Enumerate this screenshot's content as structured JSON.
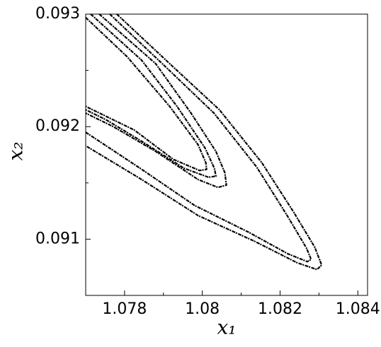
{
  "chart_data": {
    "type": "line",
    "xlabel": "x₁",
    "ylabel": "x₂",
    "xlim": [
      1.077,
      1.08425
    ],
    "ylim": [
      0.0905,
      0.093
    ],
    "xticks": [
      1.078,
      1.08,
      1.082,
      1.084
    ],
    "yticks": [
      0.091,
      0.092,
      0.093
    ],
    "xminor": [
      1.079,
      1.081,
      1.083
    ],
    "yminor": [
      0.0915,
      0.0925
    ],
    "series": [
      {
        "color": "#000000",
        "x": [
          1.0778,
          1.07916,
          1.08044,
          1.08153,
          1.08235,
          1.08289,
          1.08307,
          1.08295,
          1.08244,
          1.08135,
          1.07989,
          1.07844,
          1.077
        ],
        "values": [
          0.093,
          0.09256,
          0.09215,
          0.09168,
          0.09124,
          0.09093,
          0.09077,
          0.09073,
          0.09079,
          0.09098,
          0.09121,
          0.09153,
          0.09183
        ]
      },
      {
        "color": "#000000",
        "x": [
          1.07762,
          1.079,
          1.0803,
          1.0814,
          1.0822,
          1.08268,
          1.0828,
          1.0827,
          1.0822,
          1.0812,
          1.0798,
          1.0784,
          1.077
        ],
        "values": [
          0.093,
          0.09255,
          0.09212,
          0.09164,
          0.0912,
          0.09092,
          0.09082,
          0.0908,
          0.09087,
          0.09106,
          0.0913,
          0.09163,
          0.09195
        ]
      },
      {
        "color": "#000000",
        "x": [
          1.07735,
          1.0788,
          1.07971,
          1.08035,
          1.08058,
          1.08062,
          1.0804,
          1.07989,
          1.0788,
          1.07771,
          1.077
        ],
        "values": [
          0.093,
          0.09256,
          0.09212,
          0.09178,
          0.09159,
          0.09148,
          0.09146,
          0.09153,
          0.09178,
          0.092,
          0.09212
        ]
      },
      {
        "color": "#000000",
        "x": [
          1.07713,
          1.07844,
          1.07935,
          1.08007,
          1.08031,
          1.08035,
          1.08016,
          1.07953,
          1.07844,
          1.07753,
          1.077
        ],
        "values": [
          0.093,
          0.09259,
          0.09218,
          0.09181,
          0.09163,
          0.09156,
          0.09155,
          0.09163,
          0.09187,
          0.09206,
          0.09215
        ]
      },
      {
        "color": "#000000",
        "x": [
          1.077,
          1.07807,
          1.07916,
          1.07989,
          1.08009,
          1.08011,
          1.07993,
          1.07925,
          1.07825,
          1.077
        ],
        "values": [
          0.09297,
          0.09262,
          0.09218,
          0.09184,
          0.09168,
          0.09162,
          0.09161,
          0.09171,
          0.09197,
          0.09218
        ]
      }
    ]
  }
}
